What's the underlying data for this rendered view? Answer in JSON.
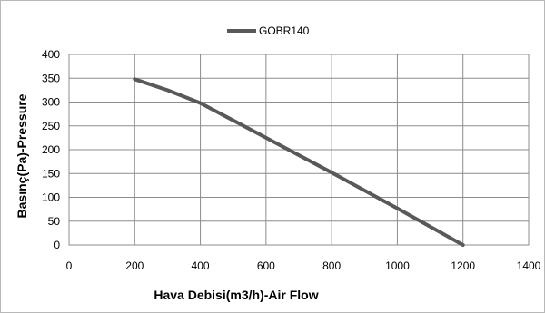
{
  "chart_data": {
    "type": "line",
    "title": "",
    "xlabel": "Hava Debisi(m3/h)-Air Flow",
    "ylabel": "Basınç(Pa)-Pressure",
    "xlim": [
      0,
      1400
    ],
    "ylim": [
      0,
      400
    ],
    "x_ticks": [
      "0",
      "200",
      "400",
      "600",
      "800",
      "1000",
      "1200",
      "1400"
    ],
    "y_ticks": [
      "0",
      "50",
      "100",
      "150",
      "200",
      "250",
      "300",
      "350",
      "400"
    ],
    "grid": true,
    "legend_position": "top",
    "series": [
      {
        "name": "GOBR140",
        "color": "#595959",
        "x": [
          200,
          300,
          400,
          600,
          800,
          1000,
          1200
        ],
        "y": [
          348,
          325,
          298,
          225,
          152,
          77,
          0
        ]
      }
    ]
  }
}
